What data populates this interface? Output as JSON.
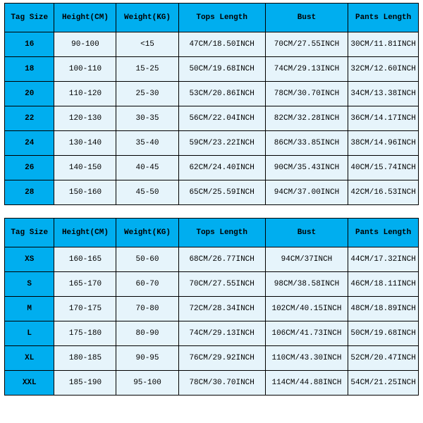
{
  "colors": {
    "header_bg": "#00aeef",
    "cell_bg": "#e6f4fb",
    "border": "#000000",
    "page_bg": "#ffffff"
  },
  "columns": [
    "Tag Size",
    "Height(CM)",
    "Weight(KG)",
    "Tops Length",
    "Bust",
    "Pants Length"
  ],
  "table1": {
    "rows": [
      {
        "tag": "16",
        "height": "90-100",
        "weight": "<15",
        "tops": "47CM/18.50INCH",
        "bust": "70CM/27.55INCH",
        "pants": "30CM/11.81INCH"
      },
      {
        "tag": "18",
        "height": "100-110",
        "weight": "15-25",
        "tops": "50CM/19.68INCH",
        "bust": "74CM/29.13INCH",
        "pants": "32CM/12.60INCH"
      },
      {
        "tag": "20",
        "height": "110-120",
        "weight": "25-30",
        "tops": "53CM/20.86INCH",
        "bust": "78CM/30.70INCH",
        "pants": "34CM/13.38INCH"
      },
      {
        "tag": "22",
        "height": "120-130",
        "weight": "30-35",
        "tops": "56CM/22.04INCH",
        "bust": "82CM/32.28INCH",
        "pants": "36CM/14.17INCH"
      },
      {
        "tag": "24",
        "height": "130-140",
        "weight": "35-40",
        "tops": "59CM/23.22INCH",
        "bust": "86CM/33.85INCH",
        "pants": "38CM/14.96INCH"
      },
      {
        "tag": "26",
        "height": "140-150",
        "weight": "40-45",
        "tops": "62CM/24.40INCH",
        "bust": "90CM/35.43INCH",
        "pants": "40CM/15.74INCH"
      },
      {
        "tag": "28",
        "height": "150-160",
        "weight": "45-50",
        "tops": "65CM/25.59INCH",
        "bust": "94CM/37.00INCH",
        "pants": "42CM/16.53INCH"
      }
    ]
  },
  "table2": {
    "rows": [
      {
        "tag": "XS",
        "height": "160-165",
        "weight": "50-60",
        "tops": "68CM/26.77INCH",
        "bust": "94CM/37INCH",
        "pants": "44CM/17.32INCH"
      },
      {
        "tag": "S",
        "height": "165-170",
        "weight": "60-70",
        "tops": "70CM/27.55INCH",
        "bust": "98CM/38.58INCH",
        "pants": "46CM/18.11INCH"
      },
      {
        "tag": "M",
        "height": "170-175",
        "weight": "70-80",
        "tops": "72CM/28.34INCH",
        "bust": "102CM/40.15INCH",
        "pants": "48CM/18.89INCH"
      },
      {
        "tag": "L",
        "height": "175-180",
        "weight": "80-90",
        "tops": "74CM/29.13INCH",
        "bust": "106CM/41.73INCH",
        "pants": "50CM/19.68INCH"
      },
      {
        "tag": "XL",
        "height": "180-185",
        "weight": "90-95",
        "tops": "76CM/29.92INCH",
        "bust": "110CM/43.30INCH",
        "pants": "52CM/20.47INCH"
      },
      {
        "tag": "XXL",
        "height": "185-190",
        "weight": "95-100",
        "tops": "78CM/30.70INCH",
        "bust": "114CM/44.88INCH",
        "pants": "54CM/21.25INCH"
      }
    ]
  }
}
